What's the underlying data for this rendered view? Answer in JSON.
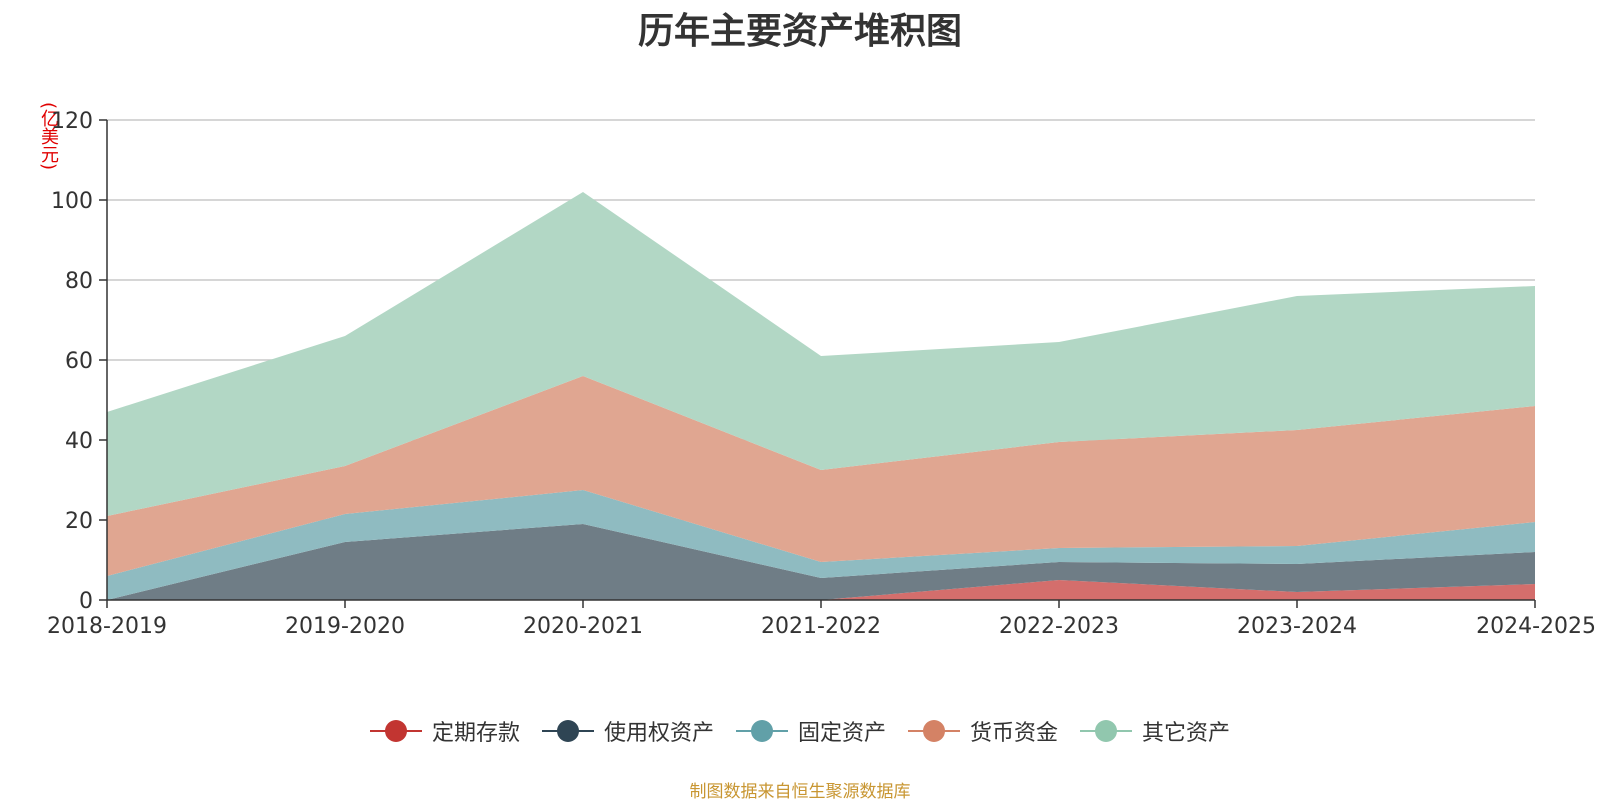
{
  "title": "历年主要资产堆积图",
  "source": "制图数据来自恒生聚源数据库",
  "chart_data": {
    "type": "area",
    "stacked": true,
    "title": "历年主要资产堆积图",
    "unit_label": "(亿美元)",
    "categories": [
      "2018-2019",
      "2019-2020",
      "2020-2021",
      "2021-2022",
      "2022-2023",
      "2023-2024",
      "2024-2025"
    ],
    "ylim": [
      0,
      120
    ],
    "yticks": [
      0,
      20,
      40,
      60,
      80,
      100,
      120
    ],
    "grid": true,
    "legend_position": "bottom",
    "series": [
      {
        "name": "定期存款",
        "color": "#c23531",
        "fill": "#d46e6c",
        "values": [
          0,
          0,
          0,
          0,
          5,
          2,
          4
        ]
      },
      {
        "name": "使用权资产",
        "color": "#2f4554",
        "fill": "#6f7d86",
        "values": [
          0,
          14.5,
          19,
          5.5,
          4.5,
          7,
          8
        ]
      },
      {
        "name": "固定资产",
        "color": "#61a0a8",
        "fill": "#8fbbc1",
        "values": [
          6,
          7,
          8.5,
          4,
          3.5,
          4.5,
          7.5
        ]
      },
      {
        "name": "货币资金",
        "color": "#d48265",
        "fill": "#e0a691",
        "values": [
          15,
          12,
          28.5,
          23,
          26.5,
          29,
          29
        ]
      },
      {
        "name": "其它资产",
        "color": "#91c7ae",
        "fill": "#b2d7c5",
        "values": [
          26,
          32.5,
          46,
          28.5,
          25,
          33.5,
          30
        ]
      }
    ]
  }
}
